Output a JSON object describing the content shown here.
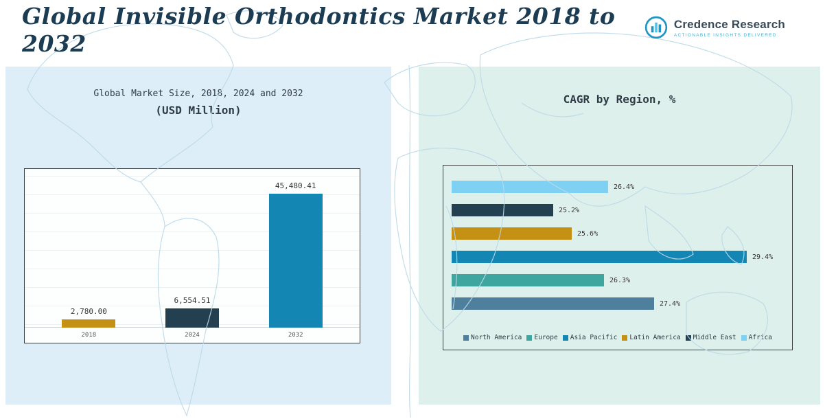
{
  "header": {
    "title": "Global Invisible Orthodontics Market 2018 to 2032",
    "logo": {
      "brand": "Credence Research",
      "tagline": "Actionable Insights Delivered",
      "icon": "bar-chart-circle-icon",
      "accent_color": "#2196c4"
    }
  },
  "chart_data": [
    {
      "type": "bar",
      "orientation": "vertical",
      "title": "Global Market Size, 2018, 2024 and 2032",
      "subtitle": "(USD Million)",
      "categories": [
        "2018",
        "2024",
        "2032"
      ],
      "values": [
        2780.0,
        6554.51,
        45480.41
      ],
      "data_labels": [
        "2,780.00",
        "6,554.51",
        "45,480.41"
      ],
      "bar_colors": [
        "#c59114",
        "#22404f",
        "#1486b4"
      ],
      "ylim": [
        0,
        50000
      ],
      "grid": true,
      "legend_position": "none"
    },
    {
      "type": "bar",
      "orientation": "horizontal",
      "title": "CAGR by Region, %",
      "categories": [
        "Africa",
        "Middle East",
        "Latin America",
        "Asia Pacific",
        "Europe",
        "North America"
      ],
      "values": [
        26.4,
        25.2,
        25.6,
        29.4,
        26.3,
        27.4
      ],
      "data_labels": [
        "26.4%",
        "25.2%",
        "25.6%",
        "29.4%",
        "26.3%",
        "27.4%"
      ],
      "bar_colors": [
        "#7ed1f2",
        "#22404f",
        "#c59114",
        "#1486b4",
        "#3fa69f",
        "#4e7f9d"
      ],
      "xlim": [
        23,
        30
      ],
      "grid": false,
      "legend_position": "bottom",
      "legend": [
        {
          "label": "North America",
          "color": "#4e7f9d"
        },
        {
          "label": "Europe",
          "color": "#3fa69f"
        },
        {
          "label": "Asia Pacific",
          "color": "#1486b4"
        },
        {
          "label": "Latin America",
          "color": "#c59114"
        },
        {
          "label": "Middle East",
          "color": "#22404f"
        },
        {
          "label": "Africa",
          "color": "#7ed1f2"
        }
      ]
    }
  ]
}
